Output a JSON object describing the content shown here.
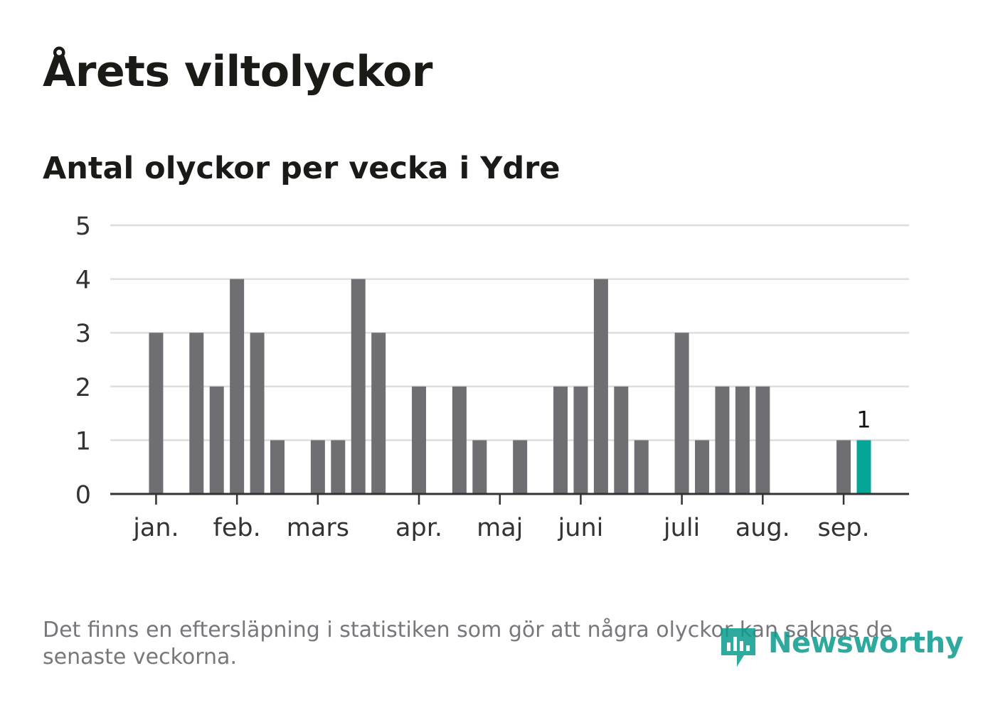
{
  "title": "Årets viltolyckor",
  "subtitle": "Antal olyckor per vecka i Ydre",
  "note": "Det finns en eftersläpning i statistiken som gör att några olyckor kan saknas de senaste veckorna.",
  "logo": {
    "text": "Newsworthy",
    "icon": "bar-chart-speech-bubble-icon"
  },
  "colors": {
    "bar": "#6f6e73",
    "highlight": "#04a596",
    "grid": "#dedede",
    "axis": "#333333",
    "text": "#333333"
  },
  "chart_data": {
    "type": "bar",
    "title": "Antal olyckor per vecka i Ydre",
    "xlabel": "",
    "ylabel": "",
    "ylim": [
      0,
      5
    ],
    "yticks": [
      0,
      1,
      2,
      3,
      4,
      5
    ],
    "grid": true,
    "weeks": [
      1,
      2,
      3,
      4,
      5,
      6,
      7,
      8,
      9,
      10,
      11,
      12,
      13,
      14,
      15,
      16,
      17,
      18,
      19,
      20,
      21,
      22,
      23,
      24,
      25,
      26,
      27,
      28,
      29,
      30,
      31,
      32,
      33,
      34,
      35,
      36,
      37,
      38
    ],
    "values": [
      0,
      3,
      0,
      3,
      2,
      4,
      3,
      1,
      0,
      1,
      1,
      4,
      3,
      0,
      2,
      0,
      2,
      1,
      0,
      1,
      0,
      2,
      2,
      4,
      2,
      1,
      0,
      3,
      1,
      2,
      2,
      2,
      0,
      0,
      0,
      1,
      1,
      0
    ],
    "highlight_index": 36,
    "highlight_label": "1",
    "month_labels": [
      {
        "label": "jan.",
        "week": 2
      },
      {
        "label": "feb.",
        "week": 6
      },
      {
        "label": "mars",
        "week": 10
      },
      {
        "label": "apr.",
        "week": 15
      },
      {
        "label": "maj",
        "week": 19
      },
      {
        "label": "juni",
        "week": 23
      },
      {
        "label": "juli",
        "week": 28
      },
      {
        "label": "aug.",
        "week": 32
      },
      {
        "label": "sep.",
        "week": 36
      }
    ]
  }
}
